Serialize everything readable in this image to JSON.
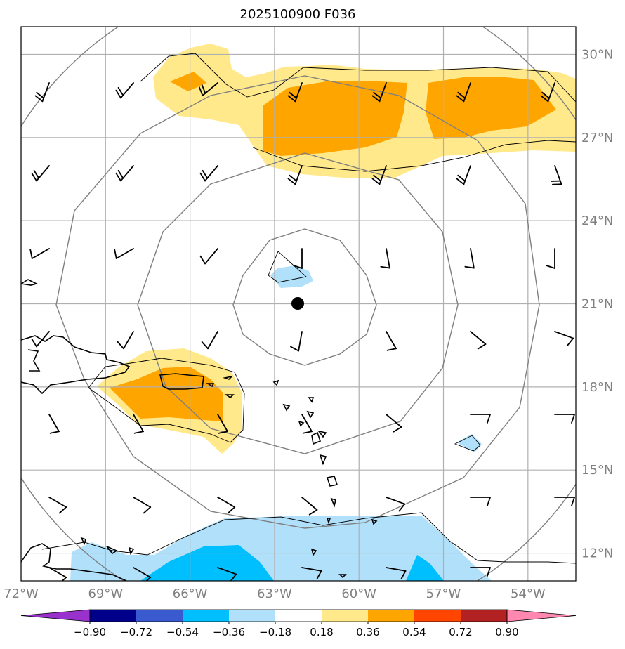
{
  "title": "2025100900 F036",
  "center_marker": {
    "lon": -62.3,
    "lat": 21.0
  },
  "map_extent": {
    "lon_min": -72,
    "lon_max": -52.3,
    "lat_min": 11,
    "lat_max": 31
  },
  "lat_ticks": [
    {
      "value": 30,
      "label": "30°N"
    },
    {
      "value": 27,
      "label": "27°N"
    },
    {
      "value": 24,
      "label": "24°N"
    },
    {
      "value": 21,
      "label": "21°N"
    },
    {
      "value": 18,
      "label": "18°N"
    },
    {
      "value": 15,
      "label": "15°N"
    },
    {
      "value": 12,
      "label": "12°N"
    }
  ],
  "lon_ticks": [
    {
      "value": -72,
      "label": "72°W"
    },
    {
      "value": -69,
      "label": "69°W"
    },
    {
      "value": -66,
      "label": "66°W"
    },
    {
      "value": -63,
      "label": "63°W"
    },
    {
      "value": -60,
      "label": "60°W"
    },
    {
      "value": -57,
      "label": "57°W"
    },
    {
      "value": -54,
      "label": "54°W"
    }
  ],
  "colorbar": {
    "levels": [
      "−0.90",
      "−0.72",
      "−0.54",
      "−0.36",
      "−0.18",
      "0.18",
      "0.36",
      "0.54",
      "0.72",
      "0.90"
    ],
    "colors": [
      "#9932cc",
      "#00008b",
      "#3a5bd0",
      "#00bfff",
      "#b0e0fa",
      "#ffffff",
      "#ffe98a",
      "#ffa500",
      "#ff4500",
      "#b22222",
      "#ff88b0"
    ]
  },
  "field_colors": {
    "pos_light": "#ffe98a",
    "pos_mid": "#ffa500",
    "neg_light": "#b0e0fa",
    "neg_mid": "#00bfff",
    "ring": "#808080",
    "grid": "#b0b0b0"
  }
}
